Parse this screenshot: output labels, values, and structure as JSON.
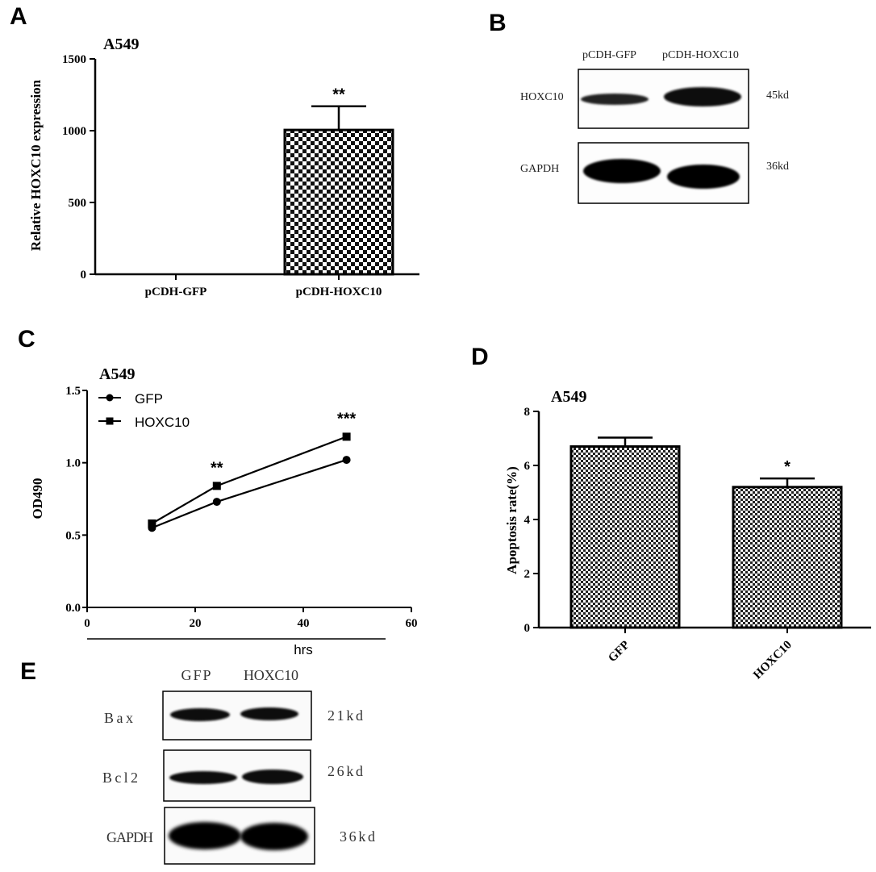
{
  "panels": {
    "A": "A",
    "B": "B",
    "C": "C",
    "D": "D",
    "E": "E"
  },
  "chart_data": [
    {
      "panel": "A",
      "type": "bar",
      "title": "A549",
      "ylabel": "Relative HOXC10  expression",
      "categories": [
        "pCDH-GFP",
        "pCDH-HOXC10"
      ],
      "values": [
        1,
        1005
      ],
      "errors": [
        0,
        165
      ],
      "ylim": [
        0,
        1500
      ],
      "yticks": [
        "0",
        "500",
        "1000",
        "1500"
      ],
      "significance": [
        "",
        "**"
      ],
      "pattern": "checkerboard"
    },
    {
      "panel": "C",
      "type": "line",
      "title": "A549",
      "ylabel": "OD490",
      "xlabel": "hrs",
      "xlim": [
        0,
        60
      ],
      "ylim": [
        0,
        1.5
      ],
      "xticks": [
        "0",
        "20",
        "40",
        "60"
      ],
      "yticks": [
        "0.0",
        "0.5",
        "1.0",
        "1.5"
      ],
      "x": [
        12,
        24,
        48
      ],
      "series": [
        {
          "name": "GFP",
          "marker": "circle",
          "values": [
            0.55,
            0.73,
            1.02
          ]
        },
        {
          "name": "HOXC10",
          "marker": "square",
          "values": [
            0.58,
            0.84,
            1.18
          ]
        }
      ],
      "significance": [
        "",
        "**",
        "***"
      ],
      "legend": "top-left"
    },
    {
      "panel": "D",
      "type": "bar",
      "title": "A549",
      "ylabel": "Apoptosis rate(%)",
      "categories": [
        "GFP",
        "HOXC10"
      ],
      "values": [
        6.7,
        5.2
      ],
      "errors": [
        0.33,
        0.32
      ],
      "ylim": [
        0,
        8
      ],
      "yticks": [
        "0",
        "2",
        "4",
        "6",
        "8"
      ],
      "significance": [
        "",
        "*"
      ],
      "pattern": "checkerboard"
    }
  ],
  "blots": {
    "B": {
      "lanes": [
        "pCDH-GFP",
        "pCDH-HOXC10"
      ],
      "rows": [
        {
          "protein": "HOXC10",
          "size": "45kd"
        },
        {
          "protein": "GAPDH",
          "size": "36kd"
        }
      ]
    },
    "E": {
      "lanes": [
        "GFP",
        "HOXC10"
      ],
      "rows": [
        {
          "protein": "Bax",
          "size": "21kd"
        },
        {
          "protein": "Bcl2",
          "size": "26kd"
        },
        {
          "protein": "GAPDH",
          "size": "36kd"
        }
      ]
    }
  }
}
